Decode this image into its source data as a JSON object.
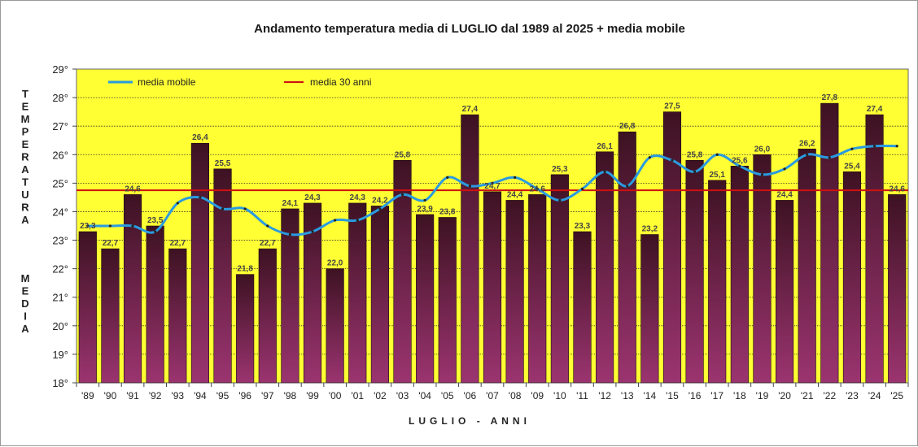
{
  "chart_data": {
    "type": "bar",
    "title": "Andamento temperatura media di LUGLIO dal 1989 al 2025 + media mobile",
    "xlabel": "LUGLIO - ANNI",
    "ylabel": "TEMPERATURA MEDIA",
    "ylabel_words": [
      "TEMPERATURA",
      "MEDIA"
    ],
    "ylim": [
      18,
      29
    ],
    "y_ticks": [
      "18°",
      "19°",
      "20°",
      "21°",
      "22°",
      "23°",
      "24°",
      "25°",
      "26°",
      "27°",
      "28°",
      "29°"
    ],
    "categories": [
      "'89",
      "'90",
      "'91",
      "'92",
      "'93",
      "'94",
      "'95",
      "'96",
      "'97",
      "'98",
      "'99",
      "'00",
      "'01",
      "'02",
      "'03",
      "'04",
      "'05",
      "'06",
      "'07",
      "'08",
      "'09",
      "'10",
      "'11",
      "'12",
      "'13",
      "'14",
      "'15",
      "'16",
      "'17",
      "'18",
      "'19",
      "'20",
      "'21",
      "'22",
      "'23",
      "'24",
      "'25"
    ],
    "values": [
      23.3,
      22.7,
      24.6,
      23.5,
      22.7,
      26.4,
      25.5,
      21.8,
      22.7,
      24.1,
      24.3,
      22.0,
      24.3,
      24.2,
      25.8,
      23.9,
      23.8,
      27.4,
      24.7,
      24.4,
      24.6,
      25.3,
      23.3,
      26.1,
      26.8,
      23.2,
      27.5,
      25.8,
      25.1,
      25.6,
      26.0,
      24.4,
      26.2,
      27.8,
      25.4,
      27.4,
      24.6
    ],
    "value_labels": [
      "23,3",
      "22,7",
      "24,6",
      "23,5",
      "22,7",
      "26,4",
      "25,5",
      "21,8",
      "22,7",
      "24,1",
      "24,3",
      "22,0",
      "24,3",
      "24,2",
      "25,8",
      "23,9",
      "23,8",
      "27,4",
      "24,7",
      "24,4",
      "24,6",
      "25,3",
      "23,3",
      "26,1",
      "26,8",
      "23,2",
      "27,5",
      "25,8",
      "25,1",
      "25,6",
      "26,0",
      "24,4",
      "26,2",
      "27,8",
      "25,4",
      "27,4",
      "24,6"
    ],
    "moving_average": {
      "name": "media mobile",
      "values": [
        23.5,
        23.5,
        23.5,
        23.3,
        24.3,
        24.5,
        24.1,
        24.1,
        23.5,
        23.2,
        23.3,
        23.7,
        23.7,
        24.1,
        24.6,
        24.4,
        25.2,
        24.9,
        25.0,
        25.2,
        24.8,
        24.4,
        24.8,
        25.4,
        24.9,
        25.9,
        25.8,
        25.4,
        26.0,
        25.6,
        25.3,
        25.5,
        26.0,
        25.9,
        26.2,
        26.3,
        26.3
      ]
    },
    "reference_line": {
      "name": "media 30 anni",
      "value": 24.75
    },
    "colors": {
      "plot_background": "#ffff33",
      "bar_top": "#3d1222",
      "bar_bottom": "#9b3470",
      "moving_average": "#2a9be0",
      "reference_line": "#cc1111",
      "gridline": "#333333"
    },
    "grid": true,
    "legend_position": "top-left"
  }
}
